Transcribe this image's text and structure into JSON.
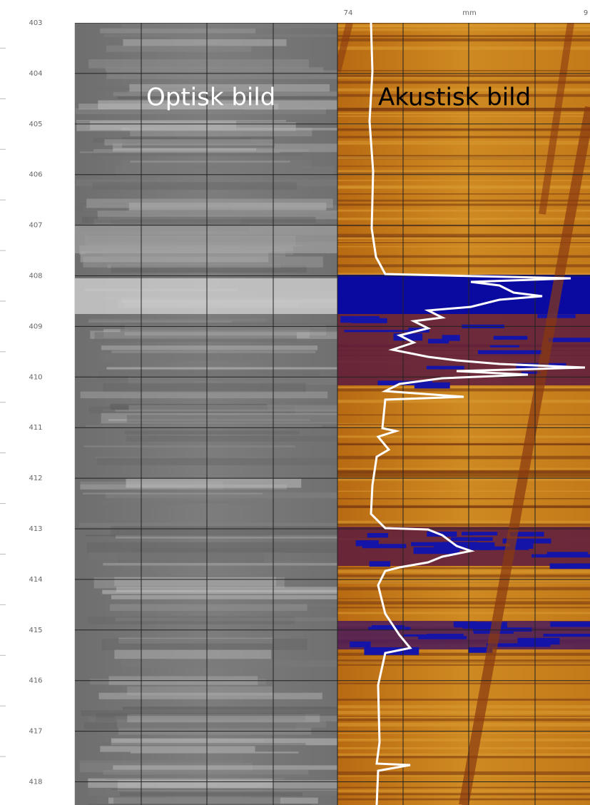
{
  "header": {
    "scale_min": "74",
    "scale_unit": "mm",
    "scale_max": "9"
  },
  "depth_labels": [
    "403",
    "404",
    "405",
    "406",
    "407",
    "408",
    "409",
    "410",
    "411",
    "412",
    "413",
    "414",
    "415",
    "416",
    "417",
    "418"
  ],
  "panels": {
    "optical": "Optisk bild",
    "acoustic": "Akustisk bild"
  }
}
